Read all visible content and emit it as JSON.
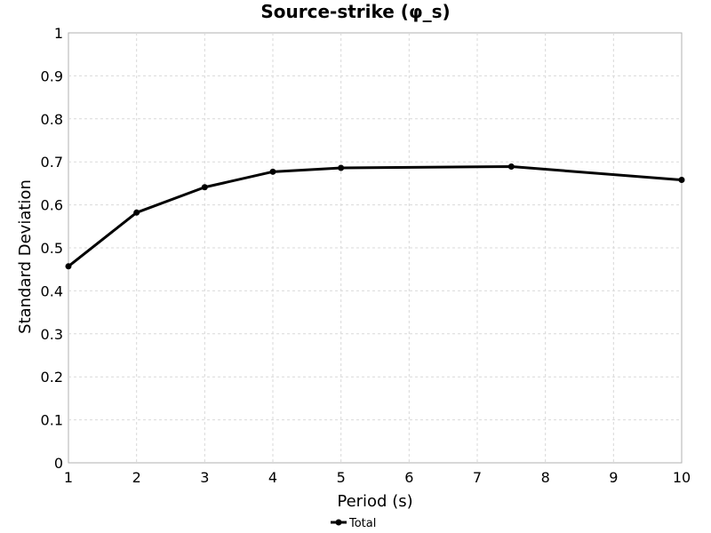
{
  "chart_data": {
    "type": "line",
    "title": "Source-strike (φ_s)",
    "xlabel": "Period (s)",
    "ylabel": "Standard Deviation",
    "xlim": [
      1,
      10
    ],
    "ylim": [
      0,
      1
    ],
    "xticks": [
      "1",
      "2",
      "3",
      "4",
      "5",
      "6",
      "7",
      "8",
      "9",
      "10"
    ],
    "yticks": [
      "0",
      "0.1",
      "0.2",
      "0.3",
      "0.4",
      "0.5",
      "0.6",
      "0.7",
      "0.8",
      "0.9",
      "1"
    ],
    "grid": true,
    "legend_position": "bottom-center",
    "series": [
      {
        "name": "Total",
        "color": "#000000",
        "x": [
          1,
          2,
          3,
          4,
          5,
          7.5,
          10
        ],
        "y": [
          0.457,
          0.582,
          0.641,
          0.677,
          0.686,
          0.689,
          0.658
        ]
      }
    ]
  }
}
